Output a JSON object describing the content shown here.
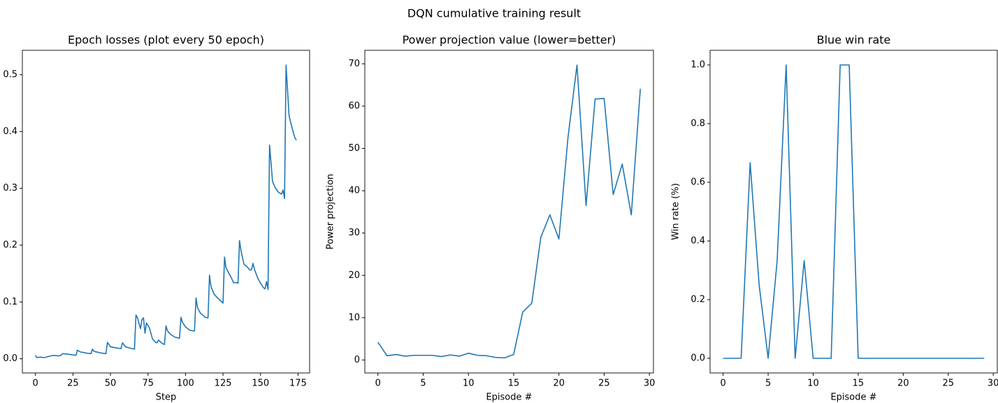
{
  "title": "DQN cumulative training result",
  "chart_data": [
    {
      "type": "line",
      "title": "Epoch losses (plot every 50 epoch)",
      "xlabel": "Step",
      "color": "#1f77b4",
      "x": [
        0,
        1,
        3,
        6,
        10,
        12,
        15,
        17,
        18,
        22,
        27,
        28,
        30,
        34,
        37,
        38,
        39,
        44,
        47,
        48,
        50,
        54,
        57,
        58,
        60,
        64,
        66,
        67,
        68,
        70,
        71,
        72,
        73,
        74,
        76,
        78,
        80,
        81,
        82,
        84,
        86,
        87,
        88,
        90,
        93,
        96,
        97,
        98,
        100,
        102,
        103,
        106,
        107,
        108,
        110,
        112,
        113,
        115,
        116,
        117,
        119,
        121,
        123,
        125,
        126,
        127,
        129,
        131,
        132,
        134,
        135,
        136,
        137,
        138,
        139,
        141,
        143,
        144,
        145,
        146,
        148,
        150,
        152,
        153,
        154,
        155,
        156,
        157,
        158,
        160,
        162,
        164,
        165,
        166,
        167,
        168,
        169,
        170,
        172,
        173,
        174
      ],
      "values": [
        0.006,
        0.002,
        0.003,
        0.002,
        0.005,
        0.006,
        0.005,
        0.006,
        0.009,
        0.008,
        0.006,
        0.015,
        0.012,
        0.01,
        0.009,
        0.017,
        0.013,
        0.01,
        0.009,
        0.029,
        0.021,
        0.019,
        0.018,
        0.028,
        0.021,
        0.018,
        0.017,
        0.077,
        0.072,
        0.053,
        0.069,
        0.072,
        0.045,
        0.063,
        0.054,
        0.035,
        0.029,
        0.028,
        0.033,
        0.028,
        0.025,
        0.058,
        0.049,
        0.043,
        0.038,
        0.036,
        0.073,
        0.064,
        0.056,
        0.052,
        0.05,
        0.049,
        0.107,
        0.09,
        0.08,
        0.076,
        0.073,
        0.072,
        0.147,
        0.127,
        0.114,
        0.108,
        0.103,
        0.098,
        0.179,
        0.16,
        0.15,
        0.14,
        0.134,
        0.134,
        0.133,
        0.208,
        0.19,
        0.178,
        0.166,
        0.162,
        0.156,
        0.157,
        0.168,
        0.157,
        0.143,
        0.133,
        0.125,
        0.123,
        0.136,
        0.122,
        0.376,
        0.345,
        0.312,
        0.3,
        0.293,
        0.29,
        0.297,
        0.282,
        0.517,
        0.473,
        0.428,
        0.417,
        0.397,
        0.388,
        0.385
      ],
      "xlim": [
        -8.7,
        182.7
      ],
      "ylim": [
        -0.025,
        0.543
      ],
      "xticks": [
        0,
        25,
        50,
        75,
        100,
        125,
        150,
        175
      ],
      "yticks": [
        {
          "value": 0,
          "label": "0.0"
        },
        0.1,
        0.2,
        0.3,
        0.4,
        0.5
      ]
    },
    {
      "type": "line",
      "title": "Power projection value (lower=better)",
      "xlabel": "Episode #",
      "ylabel": "Power projection",
      "color": "#1f77b4",
      "x": [
        0,
        1,
        2,
        3,
        4,
        5,
        6,
        7,
        8,
        9,
        10,
        11,
        12,
        13,
        14,
        15,
        16,
        17,
        18,
        19,
        20,
        21,
        22,
        23,
        24,
        25,
        26,
        27,
        28,
        29
      ],
      "values": [
        4.2,
        1.0,
        1.3,
        0.9,
        1.1,
        1.1,
        1.1,
        0.8,
        1.2,
        0.9,
        1.6,
        1.1,
        1.0,
        0.6,
        0.5,
        1.3,
        11.3,
        13.4,
        29.0,
        34.3,
        28.6,
        52.5,
        69.7,
        36.5,
        61.7,
        61.8,
        39.1,
        46.3,
        34.3,
        64.1
      ],
      "xlim": [
        -1.45,
        30.45
      ],
      "ylim": [
        -3.07,
        73.2
      ],
      "xticks": [
        0,
        5,
        10,
        15,
        20,
        25,
        30
      ],
      "yticks": [
        0,
        10,
        20,
        30,
        40,
        50,
        60,
        70
      ]
    },
    {
      "type": "line",
      "title": "Blue win rate",
      "xlabel": "Episode #",
      "ylabel": "Win rate (%)",
      "color": "#1f77b4",
      "x": [
        0,
        1,
        2,
        3,
        4,
        5,
        6,
        7,
        8,
        9,
        10,
        11,
        12,
        13,
        14,
        15,
        16,
        17,
        18,
        19,
        20,
        21,
        22,
        23,
        24,
        25,
        26,
        27,
        28,
        29
      ],
      "values": [
        0,
        0,
        0,
        0.667,
        0.25,
        0,
        0.333,
        1.0,
        0,
        0.333,
        0,
        0,
        0,
        1.0,
        1.0,
        0,
        0,
        0,
        0,
        0,
        0,
        0,
        0,
        0,
        0,
        0,
        0,
        0,
        0,
        0
      ],
      "xlim": [
        -1.45,
        30.45
      ],
      "ylim": [
        -0.05,
        1.05
      ],
      "xticks": [
        0,
        5,
        10,
        15,
        20,
        25,
        30
      ],
      "yticks": [
        {
          "value": 0,
          "label": "0.0"
        },
        0.2,
        0.4,
        0.6,
        0.8,
        {
          "value": 1,
          "label": "1.0"
        }
      ]
    }
  ]
}
